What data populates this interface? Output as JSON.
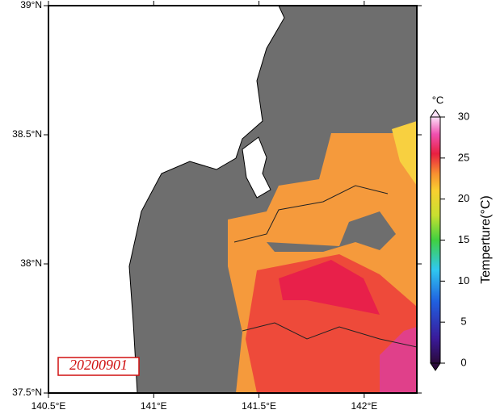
{
  "map": {
    "xlim": [
      140.5,
      142.25
    ],
    "ylim": [
      37.5,
      39
    ],
    "xticks": [
      {
        "value": 140.5,
        "label": "140.5°E"
      },
      {
        "value": 141,
        "label": "141°E"
      },
      {
        "value": 141.5,
        "label": "141.5°E"
      },
      {
        "value": 142,
        "label": "142°E"
      }
    ],
    "yticks": [
      {
        "value": 37.5,
        "label": "37.5°N"
      },
      {
        "value": 38,
        "label": "38°N"
      },
      {
        "value": 38.5,
        "label": "38.5°N"
      },
      {
        "value": 39,
        "label": "39°N"
      }
    ],
    "date_label": "20200901",
    "colorbar": {
      "title": "Temperture(°C)",
      "unit": "°C",
      "range": [
        0,
        30
      ],
      "ticks": [
        0,
        5,
        10,
        15,
        20,
        25,
        30
      ]
    }
  }
}
